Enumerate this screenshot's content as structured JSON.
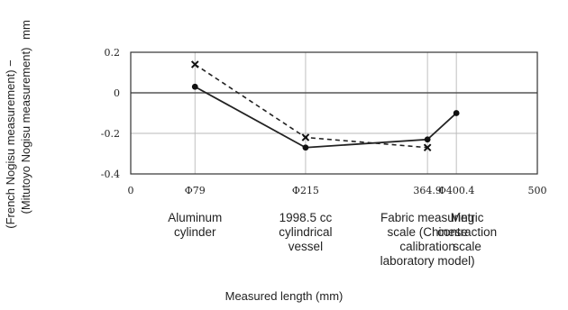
{
  "chart_data": {
    "type": "line",
    "title": "",
    "xlabel": "Measured length (mm)",
    "ylabel": "(French Nogisu measurement) − (Mitutoyo Nogisu measurement) mm",
    "ylabel_parts": {
      "line1": "(French Nogisu measurement) −",
      "line2": "(Mitutoyo Nogisu measurement)",
      "unit": "mm"
    },
    "xlim": [
      0,
      500
    ],
    "ylim": [
      -0.4,
      0.2
    ],
    "grid": true,
    "x_ticks": [
      {
        "value": 0,
        "label": "0"
      },
      {
        "value": 79,
        "label": "Φ79"
      },
      {
        "value": 215,
        "label": "Φ215"
      },
      {
        "value": 364.9,
        "label": "364.9"
      },
      {
        "value": 400.4,
        "label": "Φ400.4"
      },
      {
        "value": 500,
        "label": "500"
      }
    ],
    "y_ticks": [
      {
        "value": 0.2,
        "label": "0.2"
      },
      {
        "value": 0,
        "label": "0"
      },
      {
        "value": -0.2,
        "label": "-0.2"
      },
      {
        "value": -0.4,
        "label": "-0.4"
      }
    ],
    "category_labels": [
      {
        "x": 79,
        "lines": [
          "Aluminum",
          "cylinder"
        ]
      },
      {
        "x": 215,
        "lines": [
          "1998.5 cc",
          "cylindrical",
          "vessel"
        ]
      },
      {
        "x": 364.9,
        "lines": [
          "Fabric measuring",
          "scale (Chinese",
          "calibration",
          "laboratory model)"
        ]
      },
      {
        "x": 400.4,
        "lines": [
          "Metric",
          "contraction",
          "scale"
        ]
      }
    ],
    "series": [
      {
        "marker": "circle",
        "style": "solid",
        "points": [
          [
            79,
            0.03
          ],
          [
            215,
            -0.27
          ],
          [
            364.9,
            -0.23
          ],
          [
            400.4,
            -0.1
          ]
        ]
      },
      {
        "marker": "cross",
        "style": "dashed",
        "points": [
          [
            79,
            0.14
          ],
          [
            215,
            -0.22
          ],
          [
            364.9,
            -0.27
          ]
        ]
      }
    ]
  }
}
